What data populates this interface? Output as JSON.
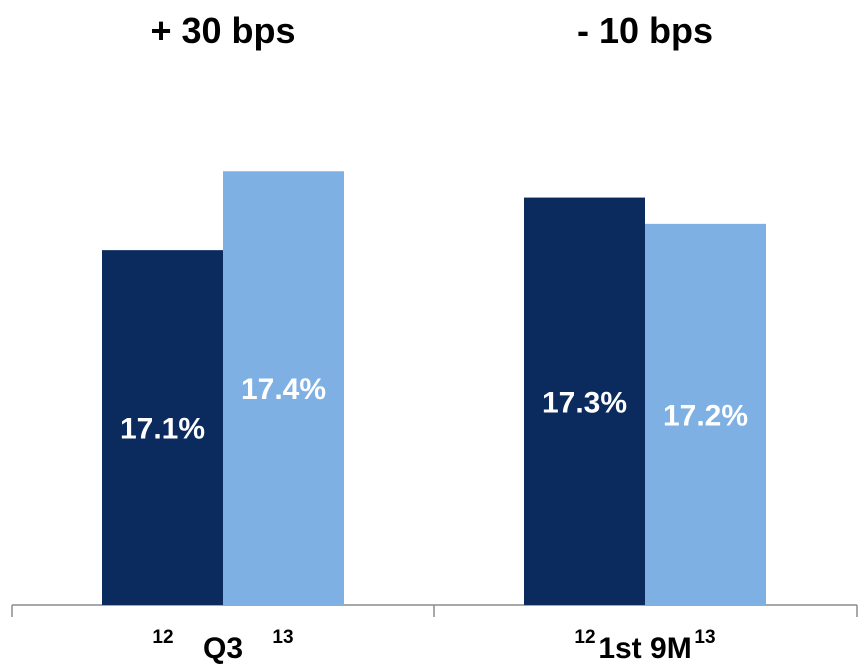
{
  "chart_data": {
    "type": "bar",
    "categories": [
      "Q3",
      "1st 9M"
    ],
    "series": [
      {
        "name": "12",
        "values": [
          17.1,
          17.3
        ],
        "color": "#0b2a5e"
      },
      {
        "name": "13",
        "values": [
          17.4,
          17.2
        ],
        "color": "#7eb0e3"
      }
    ],
    "value_labels": [
      [
        "17.1%",
        "17.3%"
      ],
      [
        "17.4%",
        "17.2%"
      ]
    ],
    "deltas": [
      "+ 30 bps",
      "- 10 bps"
    ],
    "unit": "%",
    "title": "",
    "xlabel": "",
    "ylabel": "",
    "grid": false,
    "legend": "none",
    "ylim": [
      15.75,
      17.5
    ]
  }
}
